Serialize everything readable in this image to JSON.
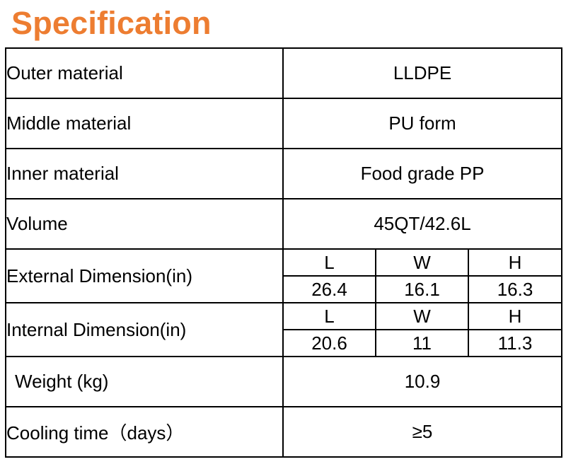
{
  "title": "Specification",
  "rows": {
    "outer": {
      "label": "Outer material",
      "value": "LLDPE"
    },
    "middle": {
      "label": "Middle material",
      "value": "PU form"
    },
    "inner": {
      "label": "Inner material",
      "value": "Food grade PP"
    },
    "volume": {
      "label": "Volume",
      "value": "45QT/42.6L"
    },
    "external": {
      "label": "External Dimension(in)",
      "headers": [
        "L",
        "W",
        "H"
      ],
      "values": [
        "26.4",
        "16.1",
        "16.3"
      ]
    },
    "internal": {
      "label": "Internal Dimension(in)",
      "headers": [
        "L",
        "W",
        "H"
      ],
      "values": [
        "20.6",
        "11",
        "11.3"
      ]
    },
    "weight": {
      "label": "Weight (kg)",
      "value": "10.9"
    },
    "cooling": {
      "label": "Cooling time（days）",
      "value": "≥5"
    }
  }
}
